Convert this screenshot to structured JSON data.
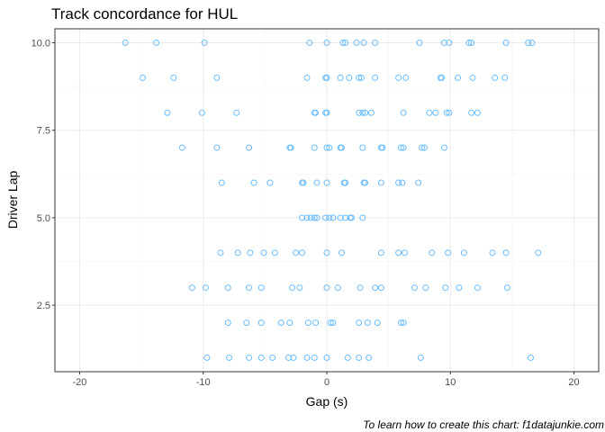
{
  "chart_data": {
    "type": "scatter",
    "title": "Track concordance for  HUL",
    "xlabel": "Gap (s)",
    "ylabel": "Driver Lap",
    "caption": "To learn how to create this chart: f1datajunkie.com",
    "xlim": [
      -22,
      22
    ],
    "ylim": [
      0.6,
      10.4
    ],
    "xticks": [
      -20,
      -10,
      0,
      10,
      20
    ],
    "xtick_labels": [
      "-20",
      "-10",
      "0",
      "10",
      "20"
    ],
    "yticks": [
      2.5,
      5.0,
      7.5,
      10.0
    ],
    "ytick_labels": [
      "2.5",
      "5.0",
      "7.5",
      "10.0"
    ],
    "grid": true,
    "point_color": "#66bbff",
    "panel_border": "#333333",
    "series": [
      {
        "points": [
          {
            "x": -16.3,
            "y": 10
          },
          {
            "x": -13.8,
            "y": 10
          },
          {
            "x": -9.9,
            "y": 10
          },
          {
            "x": -1.4,
            "y": 10
          },
          {
            "x": 0.0,
            "y": 10
          },
          {
            "x": 1.3,
            "y": 10
          },
          {
            "x": 1.5,
            "y": 10
          },
          {
            "x": 2.4,
            "y": 10
          },
          {
            "x": 3.0,
            "y": 10
          },
          {
            "x": 3.9,
            "y": 10
          },
          {
            "x": 7.5,
            "y": 10
          },
          {
            "x": 9.5,
            "y": 10
          },
          {
            "x": 9.9,
            "y": 10
          },
          {
            "x": 11.5,
            "y": 10
          },
          {
            "x": 11.7,
            "y": 10
          },
          {
            "x": 14.5,
            "y": 10
          },
          {
            "x": 16.3,
            "y": 10
          },
          {
            "x": 16.6,
            "y": 10
          },
          {
            "x": -14.9,
            "y": 9
          },
          {
            "x": -12.4,
            "y": 9
          },
          {
            "x": -8.9,
            "y": 9
          },
          {
            "x": -1.6,
            "y": 9
          },
          {
            "x": -0.1,
            "y": 9
          },
          {
            "x": 0.0,
            "y": 9
          },
          {
            "x": 1.1,
            "y": 9
          },
          {
            "x": 1.8,
            "y": 9
          },
          {
            "x": 2.6,
            "y": 9
          },
          {
            "x": 2.8,
            "y": 9
          },
          {
            "x": 3.9,
            "y": 9
          },
          {
            "x": 5.8,
            "y": 9
          },
          {
            "x": 6.4,
            "y": 9
          },
          {
            "x": 9.2,
            "y": 9
          },
          {
            "x": 9.3,
            "y": 9
          },
          {
            "x": 10.6,
            "y": 9
          },
          {
            "x": 11.8,
            "y": 9
          },
          {
            "x": 13.6,
            "y": 9
          },
          {
            "x": 14.4,
            "y": 9
          },
          {
            "x": -12.9,
            "y": 8
          },
          {
            "x": -10.1,
            "y": 8
          },
          {
            "x": -7.3,
            "y": 8
          },
          {
            "x": -1.0,
            "y": 8
          },
          {
            "x": -0.9,
            "y": 8
          },
          {
            "x": -0.1,
            "y": 8
          },
          {
            "x": 0.0,
            "y": 8
          },
          {
            "x": 2.6,
            "y": 8
          },
          {
            "x": 2.9,
            "y": 8
          },
          {
            "x": 3.1,
            "y": 8
          },
          {
            "x": 3.6,
            "y": 8
          },
          {
            "x": 6.2,
            "y": 8
          },
          {
            "x": 8.3,
            "y": 8
          },
          {
            "x": 8.8,
            "y": 8
          },
          {
            "x": 9.7,
            "y": 8
          },
          {
            "x": 9.9,
            "y": 8
          },
          {
            "x": 11.7,
            "y": 8
          },
          {
            "x": 12.2,
            "y": 8
          },
          {
            "x": -11.7,
            "y": 7
          },
          {
            "x": -8.9,
            "y": 7
          },
          {
            "x": -6.3,
            "y": 7
          },
          {
            "x": -3.0,
            "y": 7
          },
          {
            "x": -2.9,
            "y": 7
          },
          {
            "x": -1.0,
            "y": 7
          },
          {
            "x": 0.0,
            "y": 7
          },
          {
            "x": 0.2,
            "y": 7
          },
          {
            "x": 1.1,
            "y": 7
          },
          {
            "x": 1.2,
            "y": 7
          },
          {
            "x": 2.9,
            "y": 7
          },
          {
            "x": 4.4,
            "y": 7
          },
          {
            "x": 4.5,
            "y": 7
          },
          {
            "x": 6.0,
            "y": 7
          },
          {
            "x": 6.2,
            "y": 7
          },
          {
            "x": 7.7,
            "y": 7
          },
          {
            "x": 7.9,
            "y": 7
          },
          {
            "x": 9.5,
            "y": 7
          },
          {
            "x": -8.5,
            "y": 6
          },
          {
            "x": -5.9,
            "y": 6
          },
          {
            "x": -4.6,
            "y": 6
          },
          {
            "x": -2.0,
            "y": 6
          },
          {
            "x": -1.9,
            "y": 6
          },
          {
            "x": -0.8,
            "y": 6
          },
          {
            "x": 0.0,
            "y": 6
          },
          {
            "x": 1.4,
            "y": 6
          },
          {
            "x": 1.5,
            "y": 6
          },
          {
            "x": 3.0,
            "y": 6
          },
          {
            "x": 3.1,
            "y": 6
          },
          {
            "x": 4.4,
            "y": 6
          },
          {
            "x": 5.8,
            "y": 6
          },
          {
            "x": 6.1,
            "y": 6
          },
          {
            "x": 7.4,
            "y": 6
          },
          {
            "x": -2.0,
            "y": 5
          },
          {
            "x": -1.6,
            "y": 5
          },
          {
            "x": -1.3,
            "y": 5
          },
          {
            "x": -1.0,
            "y": 5
          },
          {
            "x": -0.8,
            "y": 5
          },
          {
            "x": -0.1,
            "y": 5
          },
          {
            "x": 0.2,
            "y": 5
          },
          {
            "x": 0.5,
            "y": 5
          },
          {
            "x": 1.1,
            "y": 5
          },
          {
            "x": 1.5,
            "y": 5
          },
          {
            "x": 1.9,
            "y": 5
          },
          {
            "x": 2.0,
            "y": 5
          },
          {
            "x": 2.9,
            "y": 5
          },
          {
            "x": -8.6,
            "y": 4
          },
          {
            "x": -7.2,
            "y": 4
          },
          {
            "x": -6.2,
            "y": 4
          },
          {
            "x": -5.1,
            "y": 4
          },
          {
            "x": -4.2,
            "y": 4
          },
          {
            "x": -2.5,
            "y": 4
          },
          {
            "x": -2.0,
            "y": 4
          },
          {
            "x": 0.0,
            "y": 4
          },
          {
            "x": 1.2,
            "y": 4
          },
          {
            "x": 4.4,
            "y": 4
          },
          {
            "x": 5.8,
            "y": 4
          },
          {
            "x": 6.3,
            "y": 4
          },
          {
            "x": 8.5,
            "y": 4
          },
          {
            "x": 9.8,
            "y": 4
          },
          {
            "x": 11.1,
            "y": 4
          },
          {
            "x": 13.4,
            "y": 4
          },
          {
            "x": 14.5,
            "y": 4
          },
          {
            "x": 17.1,
            "y": 4
          },
          {
            "x": -10.9,
            "y": 3
          },
          {
            "x": -9.8,
            "y": 3
          },
          {
            "x": -8.0,
            "y": 3
          },
          {
            "x": -6.3,
            "y": 3
          },
          {
            "x": -5.3,
            "y": 3
          },
          {
            "x": -2.8,
            "y": 3
          },
          {
            "x": -2.2,
            "y": 3
          },
          {
            "x": 0.0,
            "y": 3
          },
          {
            "x": 0.9,
            "y": 3
          },
          {
            "x": 2.7,
            "y": 3
          },
          {
            "x": 3.9,
            "y": 3
          },
          {
            "x": 4.4,
            "y": 3
          },
          {
            "x": 7.1,
            "y": 3
          },
          {
            "x": 8.0,
            "y": 3
          },
          {
            "x": 9.6,
            "y": 3
          },
          {
            "x": 10.7,
            "y": 3
          },
          {
            "x": 12.2,
            "y": 3
          },
          {
            "x": 14.6,
            "y": 3
          },
          {
            "x": -8.0,
            "y": 2
          },
          {
            "x": -6.5,
            "y": 2
          },
          {
            "x": -5.3,
            "y": 2
          },
          {
            "x": -3.7,
            "y": 2
          },
          {
            "x": -3.0,
            "y": 2
          },
          {
            "x": -1.5,
            "y": 2
          },
          {
            "x": -0.9,
            "y": 2
          },
          {
            "x": 0.3,
            "y": 2
          },
          {
            "x": 0.5,
            "y": 2
          },
          {
            "x": 2.6,
            "y": 2
          },
          {
            "x": 3.3,
            "y": 2
          },
          {
            "x": 4.1,
            "y": 2
          },
          {
            "x": 6.0,
            "y": 2
          },
          {
            "x": 6.2,
            "y": 2
          },
          {
            "x": -9.7,
            "y": 1
          },
          {
            "x": -7.9,
            "y": 1
          },
          {
            "x": -6.3,
            "y": 1
          },
          {
            "x": -5.3,
            "y": 1
          },
          {
            "x": -4.4,
            "y": 1
          },
          {
            "x": -3.1,
            "y": 1
          },
          {
            "x": -2.7,
            "y": 1
          },
          {
            "x": -1.6,
            "y": 1
          },
          {
            "x": -1.0,
            "y": 1
          },
          {
            "x": 0.0,
            "y": 1
          },
          {
            "x": 1.7,
            "y": 1
          },
          {
            "x": 2.6,
            "y": 1
          },
          {
            "x": 3.4,
            "y": 1
          },
          {
            "x": 7.6,
            "y": 1
          },
          {
            "x": 16.5,
            "y": 1
          }
        ]
      }
    ]
  }
}
